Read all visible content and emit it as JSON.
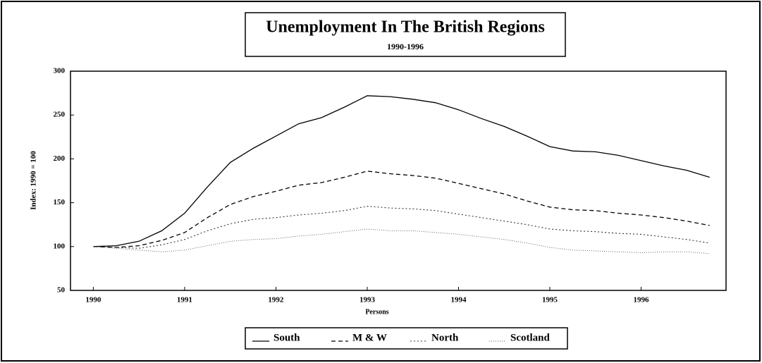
{
  "chart_data": {
    "type": "line",
    "title": "Unemployment In The British Regions",
    "subtitle": "1990-1996",
    "xlabel": "Persons",
    "ylabel": "Index: 1990 = 100",
    "x": [
      1990,
      1990.25,
      1990.5,
      1990.75,
      1991,
      1991.25,
      1991.5,
      1991.75,
      1992,
      1992.25,
      1992.5,
      1992.75,
      1993,
      1993.25,
      1993.5,
      1993.75,
      1994,
      1994.25,
      1994.5,
      1994.75,
      1995,
      1995.25,
      1995.5,
      1995.75,
      1996,
      1996.25,
      1996.5,
      1996.75
    ],
    "series": [
      {
        "name": "South",
        "color": "#000000",
        "dash": "none",
        "width": 1.3,
        "values": [
          100,
          101,
          106,
          118,
          138,
          168,
          196,
          212,
          226,
          240,
          247,
          259,
          272,
          271,
          268,
          264,
          256,
          246,
          237,
          226,
          214,
          209,
          208,
          204,
          198,
          192,
          187,
          179
        ]
      },
      {
        "name": "M & W",
        "color": "#000000",
        "dash": "6,4",
        "width": 1.3,
        "values": [
          100,
          99,
          101,
          107,
          116,
          133,
          148,
          157,
          163,
          170,
          173,
          179,
          186,
          183,
          181,
          178,
          172,
          166,
          160,
          152,
          145,
          142,
          141,
          138,
          136,
          133,
          129,
          124
        ]
      },
      {
        "name": "North",
        "color": "#333333",
        "dash": "2,3",
        "width": 1.1,
        "values": [
          100,
          99,
          98,
          102,
          108,
          118,
          126,
          131,
          133,
          136,
          138,
          141,
          146,
          144,
          143,
          141,
          137,
          133,
          129,
          125,
          120,
          118,
          117,
          115,
          114,
          111,
          108,
          104
        ]
      },
      {
        "name": "Scotland",
        "color": "#555555",
        "dash": "1,2",
        "width": 0.9,
        "values": [
          100,
          98,
          96,
          94,
          96,
          101,
          106,
          108,
          109,
          112,
          114,
          117,
          120,
          118,
          118,
          116,
          114,
          111,
          108,
          104,
          99,
          96,
          95,
          94,
          93,
          94,
          94,
          92
        ]
      }
    ],
    "xlim": [
      1989.75,
      1996.93
    ],
    "xticks": [
      1990,
      1991,
      1992,
      1993,
      1994,
      1995,
      1996
    ],
    "ylim": [
      50,
      300
    ],
    "yticks": [
      50,
      100,
      150,
      200,
      250,
      300
    ],
    "legend": "bottom"
  }
}
